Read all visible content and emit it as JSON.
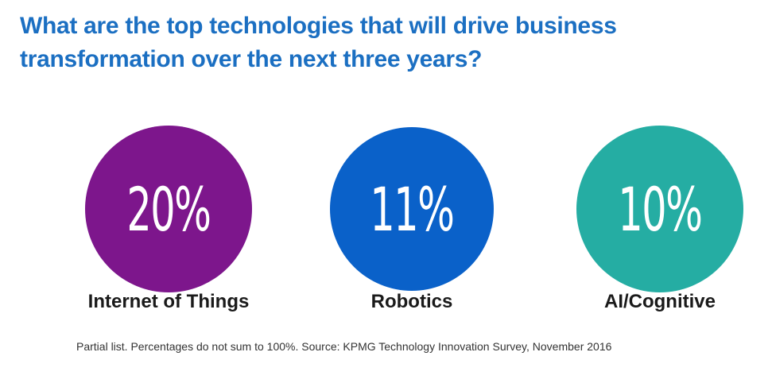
{
  "title": {
    "line1": "What are the top technologies that will drive business",
    "line2": "transformation over the next three years?"
  },
  "colors": {
    "title": "#1b6fc2",
    "iot": "#7d168c",
    "robotics": "#0a61c9",
    "ai": "#25ada3"
  },
  "chart_data": {
    "type": "bar",
    "title": "What are the top technologies that will drive business transformation over the next three years?",
    "categories": [
      "Internet of Things",
      "Robotics",
      "AI/Cognitive"
    ],
    "values": [
      20,
      11,
      10
    ],
    "value_labels": [
      "20%",
      "11%",
      "10%"
    ],
    "unit": "%",
    "grid": false,
    "legend": "none"
  },
  "footnote": "Partial list. Percentages do not sum to 100%. Source: KPMG Technology Innovation Survey, November 2016"
}
